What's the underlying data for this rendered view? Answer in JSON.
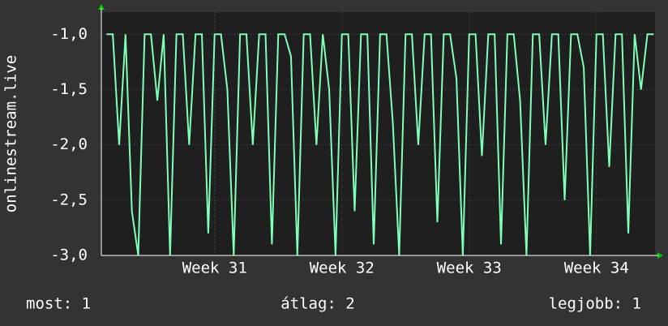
{
  "chart_data": {
    "type": "line",
    "ylabel": "onlinestream.live",
    "color": "#80ffb8",
    "xlim": [
      30.11,
      34.46
    ],
    "xticks": [
      {
        "value": 31,
        "label": "Week 31"
      },
      {
        "value": 32,
        "label": "Week 32"
      },
      {
        "value": 33,
        "label": "Week 33"
      },
      {
        "value": 34,
        "label": "Week 34"
      }
    ],
    "ylim": [
      -3,
      -0.8
    ],
    "yticks": [
      {
        "value": -3,
        "label": "-3,0"
      },
      {
        "value": -2.5,
        "label": "-2,5"
      },
      {
        "value": -2,
        "label": "-2,0"
      },
      {
        "value": -1.5,
        "label": "-1,5"
      },
      {
        "value": -1,
        "label": "-1,0"
      }
    ],
    "grid": true,
    "x": [
      30.15,
      30.2,
      30.25,
      30.3,
      30.35,
      30.4,
      30.45,
      30.5,
      30.55,
      30.6,
      30.65,
      30.7,
      30.75,
      30.8,
      30.85,
      30.9,
      30.95,
      31.0,
      31.05,
      31.1,
      31.15,
      31.2,
      31.25,
      31.3,
      31.35,
      31.4,
      31.45,
      31.5,
      31.55,
      31.6,
      31.65,
      31.7,
      31.75,
      31.8,
      31.85,
      31.9,
      31.95,
      32.0,
      32.05,
      32.1,
      32.15,
      32.2,
      32.25,
      32.3,
      32.35,
      32.4,
      32.45,
      32.5,
      32.55,
      32.6,
      32.65,
      32.7,
      32.75,
      32.8,
      32.85,
      32.9,
      32.95,
      33.0,
      33.05,
      33.1,
      33.15,
      33.2,
      33.25,
      33.3,
      33.35,
      33.4,
      33.45,
      33.5,
      33.55,
      33.6,
      33.65,
      33.7,
      33.75,
      33.8,
      33.85,
      33.9,
      33.95,
      34.0,
      34.05,
      34.1,
      34.15,
      34.2,
      34.25,
      34.3,
      34.35,
      34.4,
      34.45
    ],
    "values": [
      -1,
      -1,
      -2,
      -1,
      -2.6,
      -3,
      -1,
      -1,
      -1.6,
      -1,
      -3,
      -1,
      -1,
      -2,
      -1,
      -1,
      -2.8,
      -1,
      -1,
      -1.5,
      -3,
      -1,
      -1,
      -2,
      -1,
      -1,
      -2.9,
      -1,
      -1,
      -1.2,
      -3,
      -1,
      -1,
      -2,
      -1,
      -1.5,
      -3,
      -1,
      -1,
      -2.6,
      -1,
      -1,
      -2.9,
      -1,
      -1,
      -1.8,
      -3,
      -1,
      -1,
      -2,
      -1,
      -1,
      -2.7,
      -1,
      -1,
      -1.4,
      -3,
      -1,
      -1,
      -2.1,
      -1,
      -1,
      -2.9,
      -1,
      -1,
      -1.6,
      -3,
      -1,
      -1,
      -2,
      -1,
      -1,
      -2.5,
      -1,
      -1,
      -1.3,
      -3,
      -1,
      -1,
      -2.2,
      -1,
      -1,
      -2.8,
      -1,
      -1.5,
      -1,
      -1
    ],
    "legend": {
      "current": "most: 1",
      "average": "átlag: 2",
      "max": "legjobb: 1"
    }
  }
}
